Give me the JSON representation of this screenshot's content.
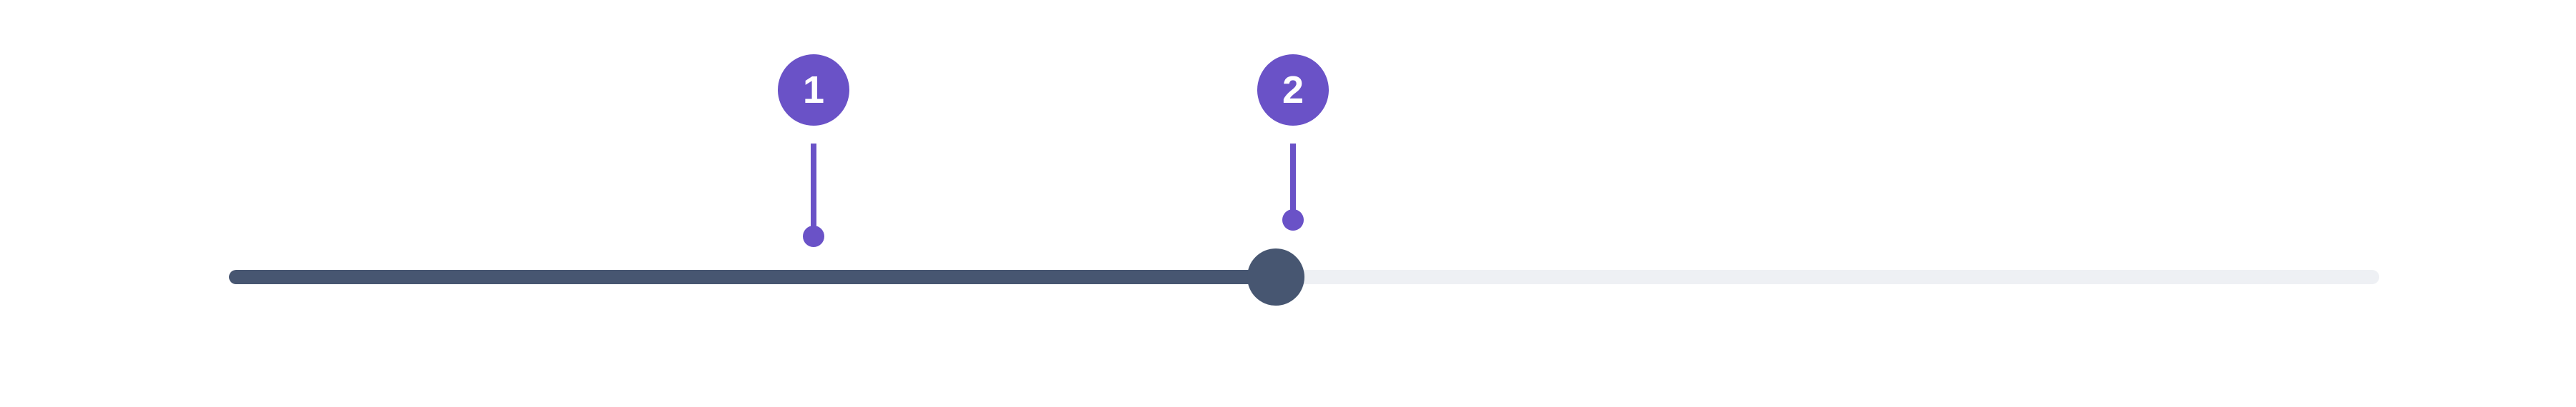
{
  "slider": {
    "value_fraction": 0.487,
    "track_color": "#eef0f4",
    "fill_color": "#475671"
  },
  "annotations": [
    {
      "label": "1",
      "target": "slider-track"
    },
    {
      "label": "2",
      "target": "slider-thumb"
    }
  ],
  "colors": {
    "annotation": "#6a52c7",
    "background": "#ffffff"
  }
}
